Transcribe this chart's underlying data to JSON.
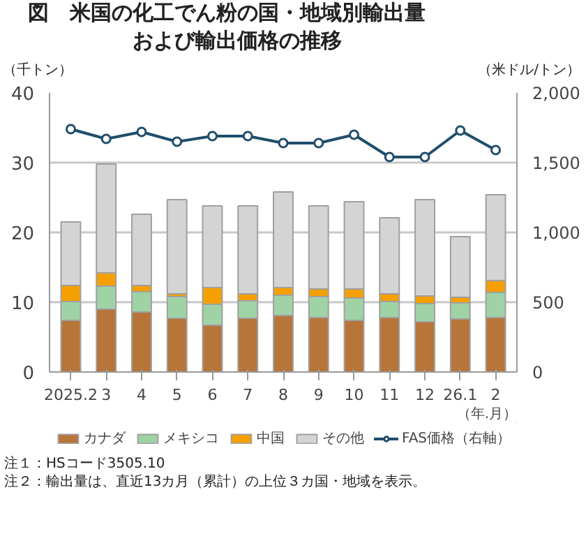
{
  "chart_data": {
    "type": "bar",
    "stacked": true,
    "title": "図　米国の化工でん粉の国・地域別輸出量",
    "subtitle": "および輸出価格の推移",
    "ylabel": "（千トン）",
    "y2label": "（米ドル/トン）",
    "xlabel": "（年.月）",
    "categories": [
      "2025.2",
      "3",
      "4",
      "5",
      "6",
      "7",
      "8",
      "9",
      "10",
      "11",
      "12",
      "26.1",
      "2"
    ],
    "series": [
      {
        "name": "カナダ",
        "color": "#b8753a",
        "values": [
          7.4,
          9.0,
          8.6,
          7.7,
          6.7,
          7.7,
          8.1,
          7.8,
          7.4,
          7.8,
          7.2,
          7.6,
          7.8
        ]
      },
      {
        "name": "メキシコ",
        "color": "#9fd3a6",
        "values": [
          2.7,
          3.3,
          2.9,
          3.1,
          3.0,
          2.5,
          2.9,
          3.0,
          3.2,
          2.3,
          2.6,
          2.3,
          3.6
        ]
      },
      {
        "name": "中国",
        "color": "#f5a000",
        "values": [
          2.3,
          1.9,
          0.9,
          0.4,
          2.4,
          1.0,
          1.1,
          1.1,
          1.3,
          1.1,
          1.1,
          0.8,
          1.7
        ]
      },
      {
        "name": "その他",
        "color": "#d4d4d4",
        "values": [
          9.1,
          15.6,
          10.2,
          13.5,
          11.7,
          12.6,
          13.7,
          11.9,
          12.5,
          10.9,
          13.8,
          8.7,
          12.3
        ]
      },
      {
        "name": "FAS価格（右軸）",
        "type": "line",
        "axis": "y2",
        "color": "#1f4e6b",
        "marker": "circle",
        "values": [
          1740,
          1670,
          1720,
          1650,
          1690,
          1690,
          1640,
          1640,
          1700,
          1540,
          1540,
          1730,
          1590
        ]
      }
    ],
    "ylim": [
      0,
      40
    ],
    "yticks": [
      0,
      10,
      20,
      30,
      40
    ],
    "y2lim": [
      0,
      2000
    ],
    "y2ticks": [
      0,
      500,
      {
        "value": 1000,
        "label": "1,000"
      },
      {
        "value": 1500,
        "label": "1,500"
      },
      {
        "value": 2000,
        "label": "2,000"
      }
    ],
    "grid": "y",
    "legend": "bottom",
    "annotations": [
      "注１：HSコード3505.10",
      "注２：輸出量は、直近13カ月（累計）の上位３カ国・地域を表示。"
    ]
  }
}
